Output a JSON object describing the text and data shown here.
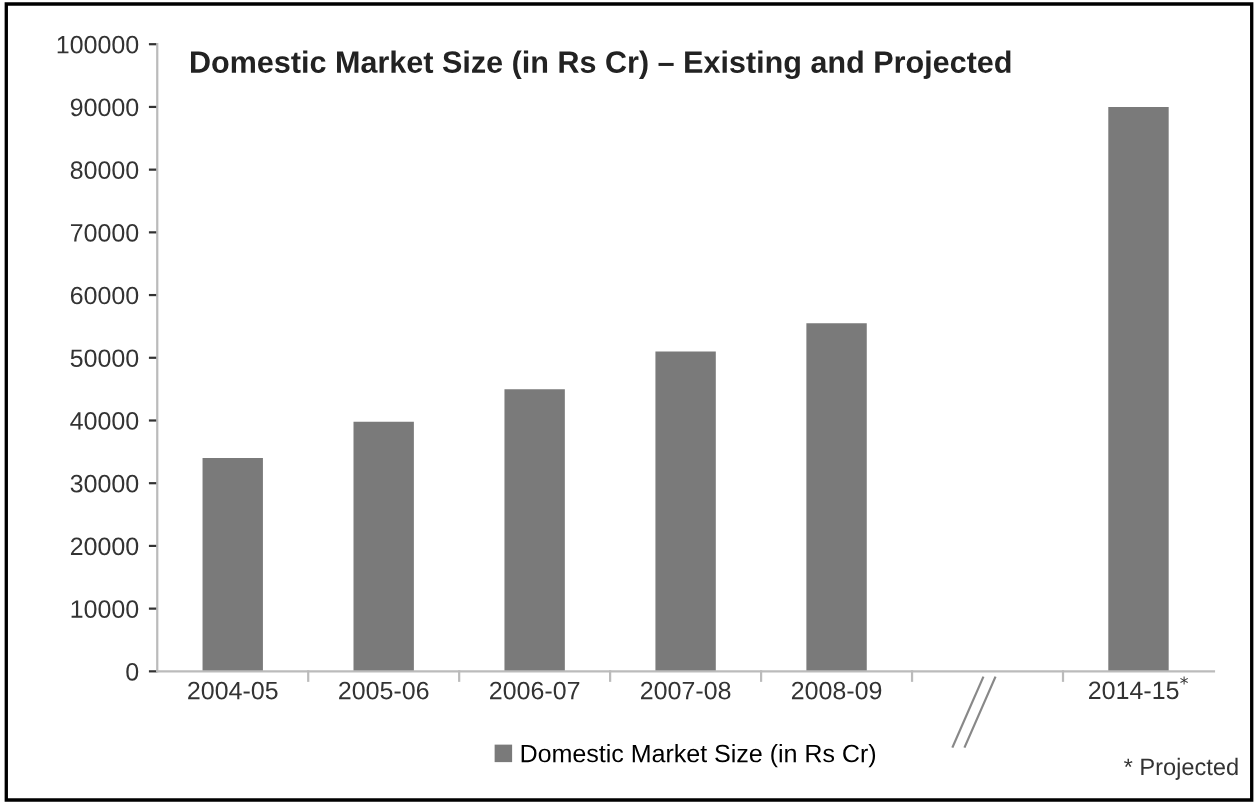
{
  "chart_data": {
    "type": "bar",
    "title": "Domestic Market Size (in Rs Cr) – Existing and Projected",
    "categories": [
      "2004-05",
      "2005-06",
      "2006-07",
      "2007-08",
      "2008-09",
      null,
      "2014-15$^{*}$"
    ],
    "series": [
      {
        "name": "Domestic Market Size (in Rs Cr)",
        "color": "#7a7a7a",
        "values": [
          34000,
          39800,
          45000,
          51000,
          55500,
          null,
          90000
        ]
      }
    ],
    "ylim": [
      0,
      100000
    ],
    "yticks": [
      0,
      10000,
      20000,
      30000,
      40000,
      50000,
      60000,
      70000,
      80000,
      90000,
      100000
    ],
    "grid": false,
    "legend": "bottom",
    "annotations": [
      "* Projected"
    ]
  }
}
